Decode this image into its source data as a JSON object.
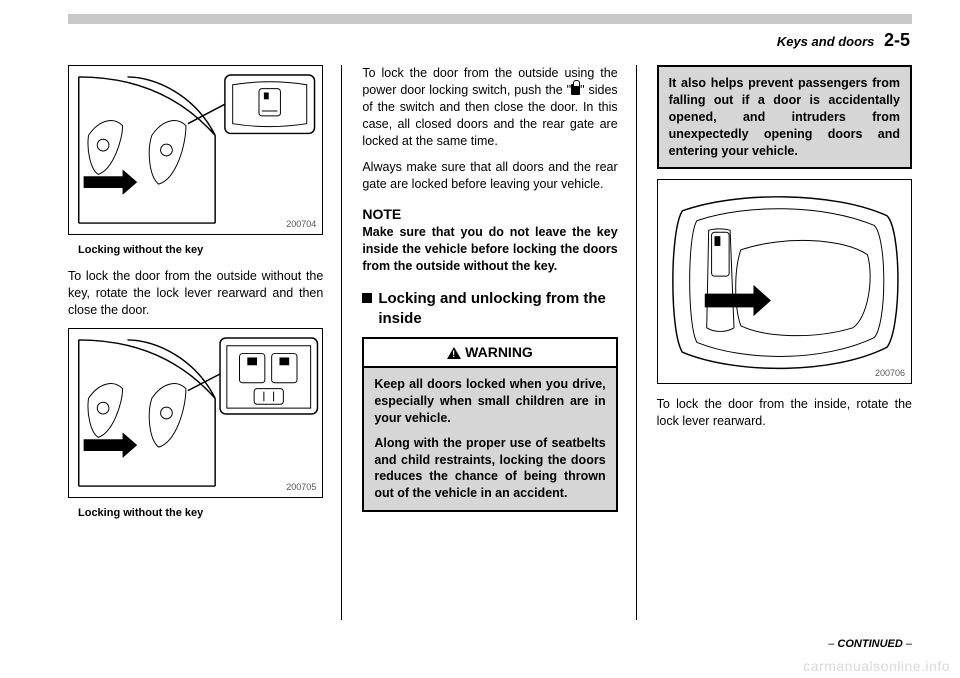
{
  "header": {
    "section": "Keys and doors",
    "page": "2-5"
  },
  "col1": {
    "fig1_id": "200704",
    "fig1_caption": "Locking without the key",
    "para1": "To lock the door from the outside without the key, rotate the lock lever rearward and then close the door.",
    "fig2_id": "200705",
    "fig2_caption": "Locking without the key"
  },
  "col2": {
    "para1a": "To lock the door from the outside using the power door locking switch, push the \"",
    "para1b": "\" sides of the switch and then close the door. In this case, all closed doors and the rear gate are locked at the same time.",
    "para2": "Always make sure that all doors and the rear gate are locked before leaving your vehicle.",
    "note_hd": "NOTE",
    "note_body": "Make sure that you do not leave the key inside the vehicle before locking the doors from the outside without the key.",
    "sec_title": "Locking and unlocking from the inside",
    "warn_label": "WARNING",
    "warn_p1": "Keep all doors locked when you drive, especially when small children are in your vehicle.",
    "warn_p2": "Along with the proper use of seatbelts and child restraints, locking the doors reduces the chance of being thrown out of the vehicle in an accident."
  },
  "col3": {
    "gray": "It also helps prevent passengers from falling out if a door is accidentally opened, and intruders from unexpectedly opening doors and entering your vehicle.",
    "fig3_id": "200706",
    "para1": "To lock the door from the inside, rotate the lock lever rearward."
  },
  "footer": {
    "text": "– CONTINUED –"
  },
  "watermark": "carmanualsonline.info"
}
